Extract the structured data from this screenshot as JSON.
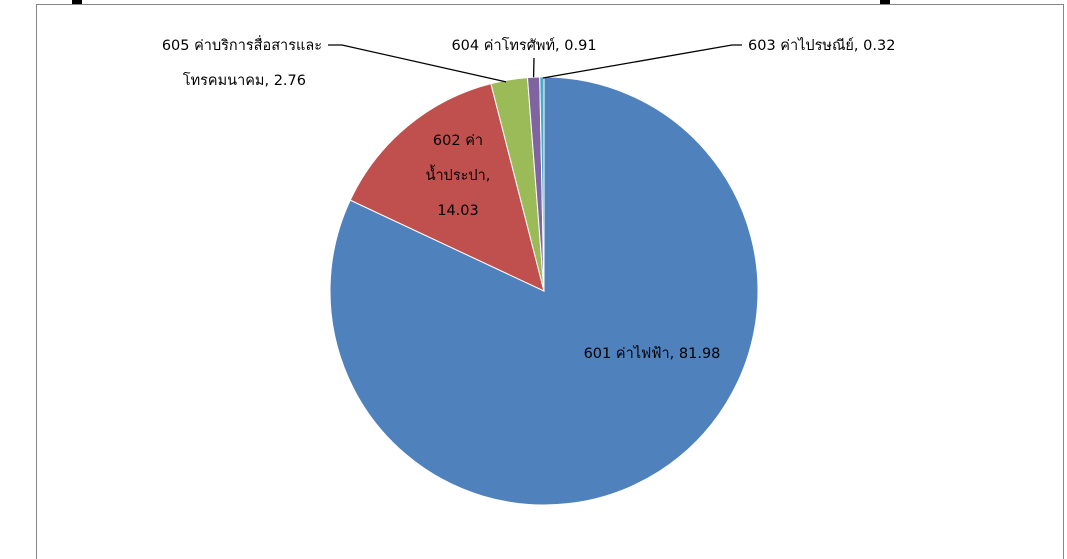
{
  "chart_data": {
    "type": "pie",
    "title": "",
    "slices": [
      {
        "label_lines": [
          "601 ค่าไฟฟ้า,",
          "81.98"
        ],
        "label_inline": "601 ค่าไฟฟ้า,  81.98",
        "value": 81.98,
        "color": "#4F81BD"
      },
      {
        "label_lines": [
          "602 ค่า",
          "น้ำประปา,",
          "14.03"
        ],
        "value": 14.03,
        "color": "#C0504D"
      },
      {
        "label_lines": [
          "605 ค่าบริการสื่อสารและ",
          "โทรคมนาคม,  2.76"
        ],
        "value": 2.76,
        "color": "#9BBB59"
      },
      {
        "label_lines": [
          "604 ค่าโทรศัพท์,  0.91"
        ],
        "value": 0.91,
        "color": "#8064A2"
      },
      {
        "label_lines": [
          "603 ค่าไปรษณีย์,  0.32"
        ],
        "value": 0.32,
        "color": "#4BACC6"
      }
    ]
  }
}
